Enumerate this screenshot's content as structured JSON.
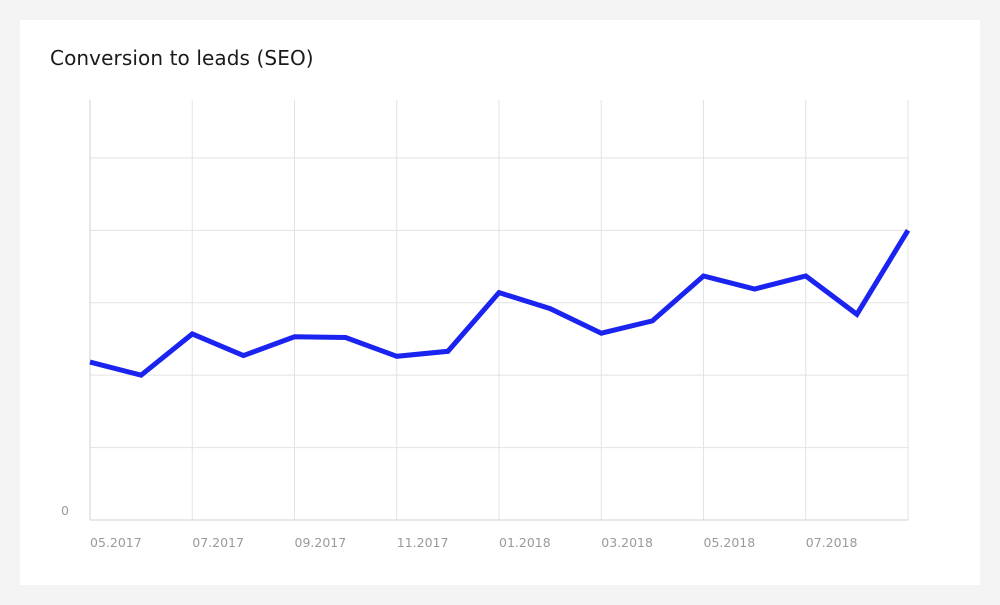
{
  "chart_data": {
    "type": "line",
    "title": "Conversion to leads (SEO)",
    "xlabel": "",
    "ylabel": "",
    "y_tick_labels": [
      "0"
    ],
    "x": [
      "2017-05",
      "2017-06",
      "2017-07",
      "2017-08",
      "2017-09",
      "2017-10",
      "2017-11",
      "2017-12",
      "2018-01",
      "2018-02",
      "2018-03",
      "2018-04",
      "2018-05",
      "2018-06",
      "2018-07",
      "2018-08",
      "2018-09"
    ],
    "x_tick_labels": [
      "05.2017",
      "07.2017",
      "09.2017",
      "11.2017",
      "01.2018",
      "03.2018",
      "05.2018",
      "07.2018"
    ],
    "series": [
      {
        "values": [
          2.18,
          2.0,
          2.57,
          2.27,
          2.53,
          2.52,
          2.26,
          2.33,
          3.14,
          2.92,
          2.58,
          2.75,
          3.37,
          3.19,
          3.37,
          2.84,
          4.0
        ],
        "color": "#1a23f0"
      }
    ],
    "ylim": [
      0,
      5.8
    ],
    "y_gridlines": [
      1,
      2,
      3,
      4,
      5
    ],
    "grid": true,
    "legend": "none"
  }
}
